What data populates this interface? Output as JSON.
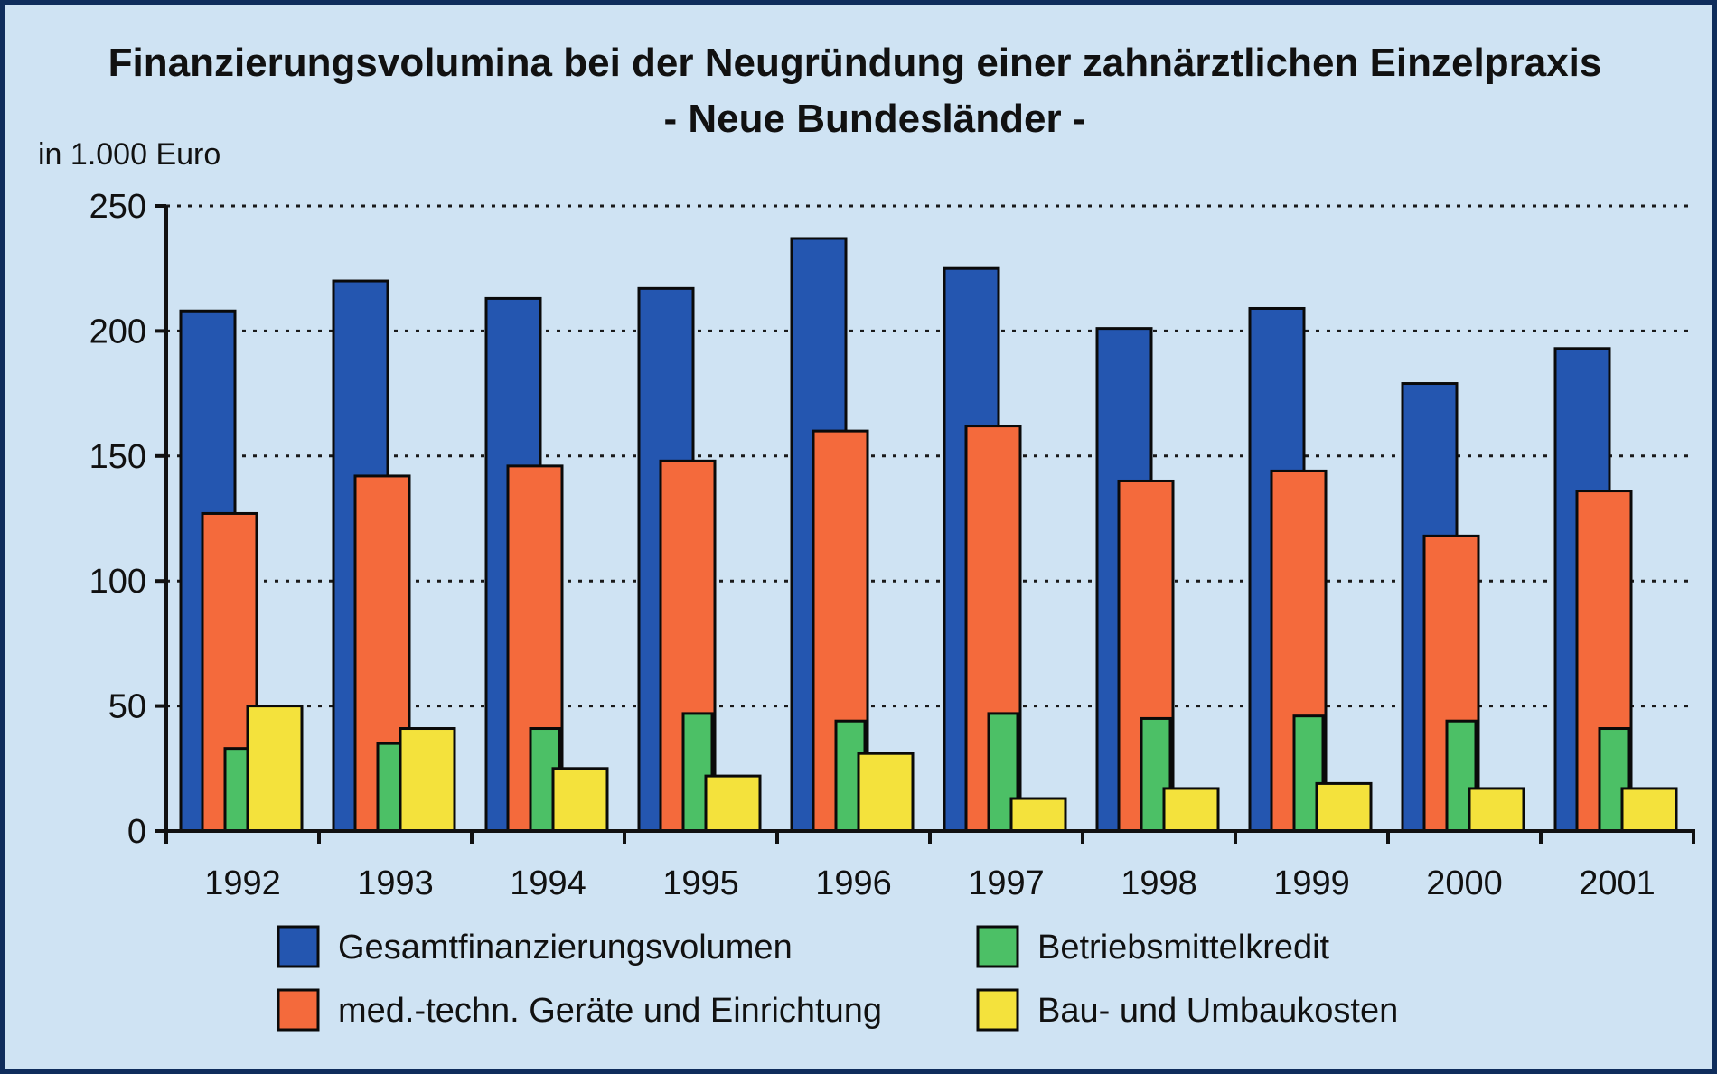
{
  "chart_data": {
    "type": "bar",
    "title": "Finanzierungsvolumina bei der Neugründung einer zahnärztlichen Einzelpraxis",
    "subtitle": "- Neue Bundesländer -",
    "ylabel": "in 1.000 Euro",
    "xlabel": "",
    "ylim": [
      0,
      250
    ],
    "yticks": [
      0,
      50,
      100,
      150,
      200,
      250
    ],
    "grid": "horizontal dotted",
    "legend_position": "bottom",
    "categories": [
      "1992",
      "1993",
      "1994",
      "1995",
      "1996",
      "1997",
      "1998",
      "1999",
      "2000",
      "2001"
    ],
    "series": [
      {
        "name": "Gesamtfinanzierungsvolumen",
        "color": "#2456b0",
        "values": [
          208,
          220,
          213,
          217,
          237,
          225,
          201,
          209,
          179,
          193
        ]
      },
      {
        "name": "med.-techn. Geräte und Einrichtung",
        "color": "#f46a3c",
        "values": [
          127,
          142,
          146,
          148,
          160,
          162,
          140,
          144,
          118,
          136
        ]
      },
      {
        "name": "Betriebsmittelkredit",
        "color": "#4cc066",
        "values": [
          33,
          35,
          41,
          47,
          44,
          47,
          45,
          46,
          44,
          41
        ]
      },
      {
        "name": "Bau- und Umbaukosten",
        "color": "#f4e23c",
        "values": [
          50,
          41,
          25,
          22,
          31,
          13,
          17,
          19,
          17,
          17
        ]
      }
    ]
  }
}
